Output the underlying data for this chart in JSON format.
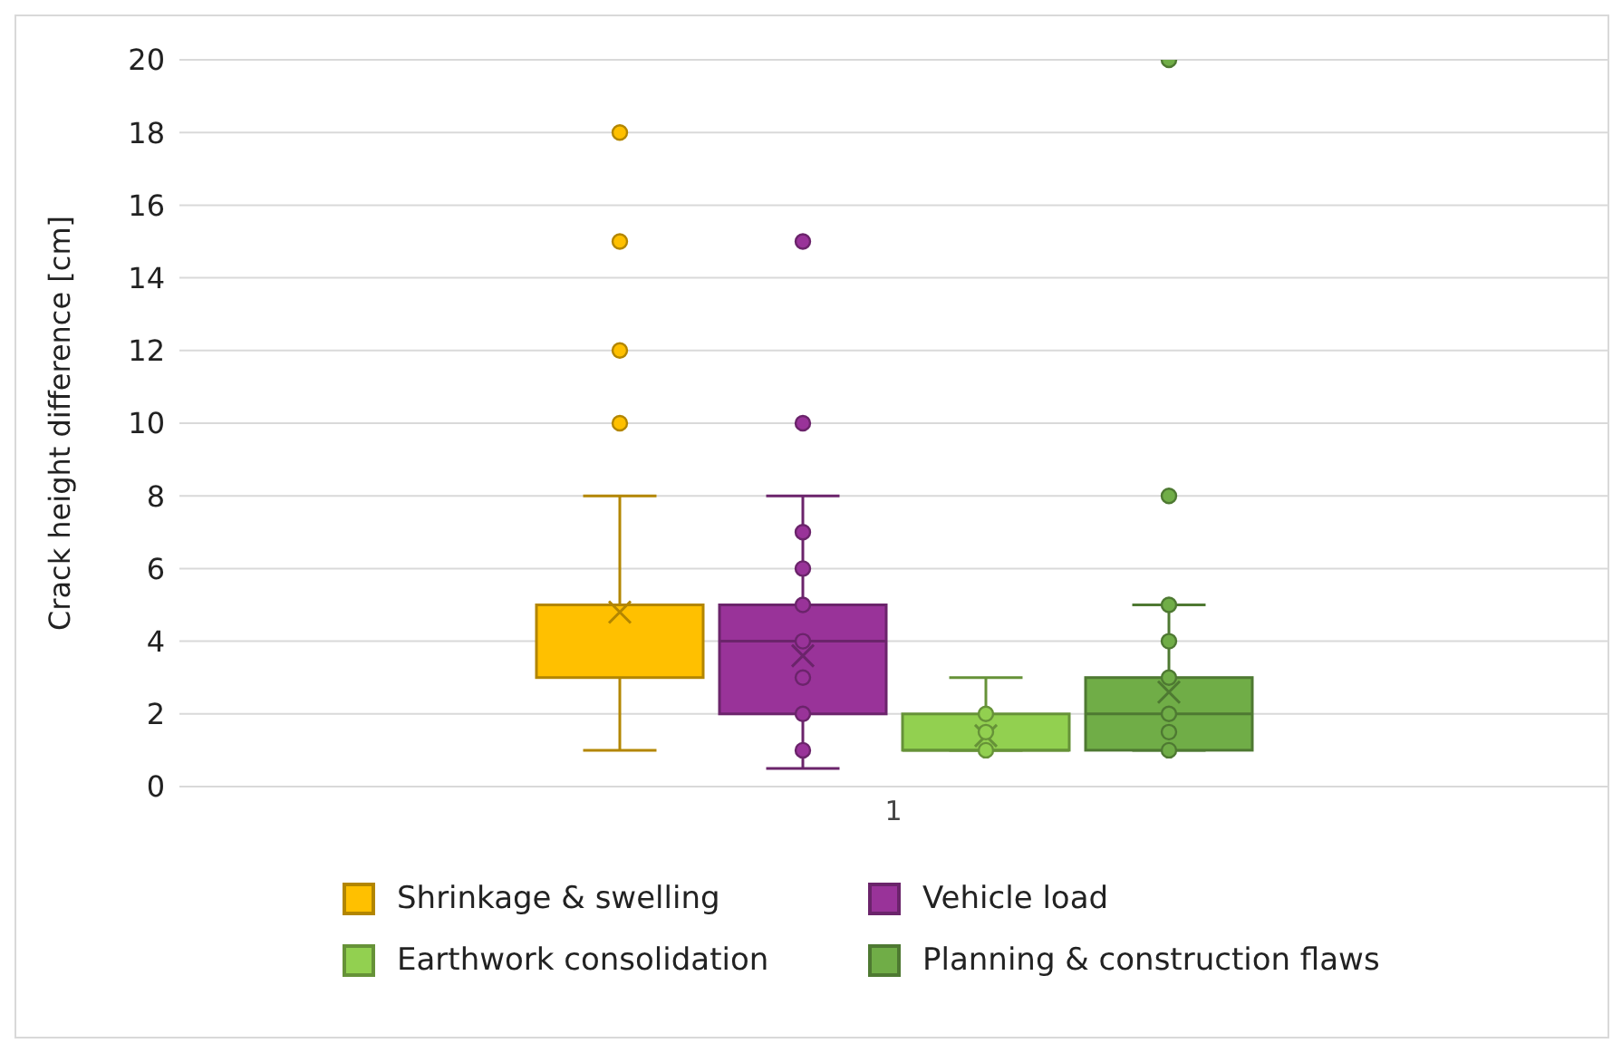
{
  "chart_data": {
    "type": "box",
    "ylabel": "Crack height difference [cm]",
    "categories": [
      "1"
    ],
    "ylim": [
      0,
      20
    ],
    "yticks": [
      0,
      2,
      4,
      6,
      8,
      10,
      12,
      14,
      16,
      18,
      20
    ],
    "grid": "y",
    "legend": "bottom",
    "series": [
      {
        "name": "Shrinkage & swelling",
        "color": "#ffc000",
        "boxes": [
          {
            "low": 1,
            "q1": 3,
            "median": 5,
            "q3": 5,
            "high": 8,
            "mean": 4.8,
            "outliers": [
              10,
              12,
              15,
              18
            ]
          }
        ]
      },
      {
        "name": "Vehicle load",
        "color": "#993399",
        "boxes": [
          {
            "low": 0.5,
            "q1": 2,
            "median": 4,
            "q3": 5,
            "high": 8,
            "mean": 3.6,
            "outliers": [
              1,
              2,
              3,
              4,
              5,
              6,
              7,
              10,
              15
            ]
          }
        ]
      },
      {
        "name": "Earthwork consolidation",
        "color": "#92d050",
        "boxes": [
          {
            "low": 1,
            "q1": 1,
            "median": 1,
            "q3": 2,
            "high": 3,
            "mean": 1.4,
            "outliers": [
              1,
              1.5,
              2
            ]
          }
        ]
      },
      {
        "name": "Planning & construction flaws",
        "color": "#70ad47",
        "boxes": [
          {
            "low": 1,
            "q1": 1,
            "median": 2,
            "q3": 3,
            "high": 5,
            "mean": 2.6,
            "outliers": [
              1,
              1.5,
              2,
              3,
              4,
              5,
              8,
              20
            ]
          }
        ]
      }
    ]
  }
}
